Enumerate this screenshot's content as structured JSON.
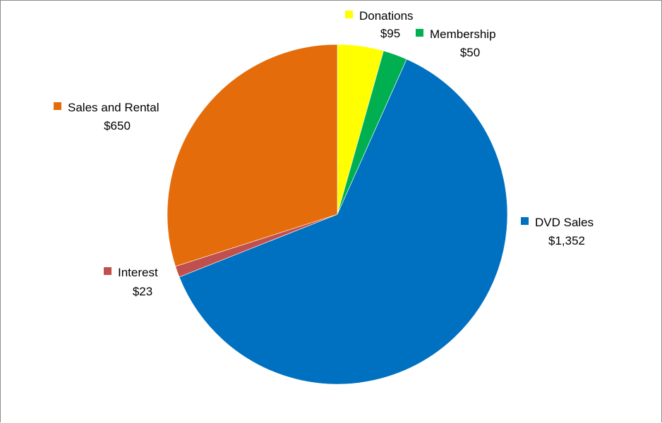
{
  "chart_data": {
    "type": "pie",
    "title": "",
    "start_angle_deg": 0,
    "direction": "clockwise",
    "slices": [
      {
        "label": "Donations",
        "value": 95,
        "value_label": "$95",
        "color": "#FFFF00"
      },
      {
        "label": "Membership",
        "value": 50,
        "value_label": "$50",
        "color": "#00B050"
      },
      {
        "label": "DVD Sales",
        "value": 1352,
        "value_label": "$1,352",
        "color": "#0070C0"
      },
      {
        "label": "Interest",
        "value": 23,
        "value_label": "$23",
        "color": "#C0504D"
      },
      {
        "label": "Sales and Rental",
        "value": 650,
        "value_label": "$650",
        "color": "#E46C0A"
      }
    ],
    "legend": "none",
    "data_labels": "outside with category name, value and legend key"
  }
}
